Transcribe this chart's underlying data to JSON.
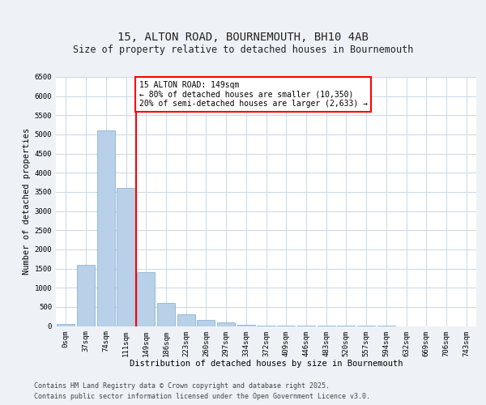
{
  "title_line1": "15, ALTON ROAD, BOURNEMOUTH, BH10 4AB",
  "title_line2": "Size of property relative to detached houses in Bournemouth",
  "xlabel": "Distribution of detached houses by size in Bournemouth",
  "ylabel": "Number of detached properties",
  "bar_color": "#b8d0e8",
  "bar_edge_color": "#7aaad0",
  "categories": [
    "0sqm",
    "37sqm",
    "74sqm",
    "111sqm",
    "149sqm",
    "186sqm",
    "223sqm",
    "260sqm",
    "297sqm",
    "334sqm",
    "372sqm",
    "409sqm",
    "446sqm",
    "483sqm",
    "520sqm",
    "557sqm",
    "594sqm",
    "632sqm",
    "669sqm",
    "706sqm",
    "743sqm"
  ],
  "values": [
    50,
    1600,
    5100,
    3600,
    1400,
    600,
    300,
    150,
    100,
    40,
    15,
    8,
    4,
    2,
    1,
    1,
    1,
    0,
    0,
    0,
    0
  ],
  "red_line_index": 4,
  "annotation_title": "15 ALTON ROAD: 149sqm",
  "annotation_line1": "← 80% of detached houses are smaller (10,350)",
  "annotation_line2": "20% of semi-detached houses are larger (2,633) →",
  "ylim": [
    0,
    6500
  ],
  "yticks": [
    0,
    500,
    1000,
    1500,
    2000,
    2500,
    3000,
    3500,
    4000,
    4500,
    5000,
    5500,
    6000,
    6500
  ],
  "footer_line1": "Contains HM Land Registry data © Crown copyright and database right 2025.",
  "footer_line2": "Contains public sector information licensed under the Open Government Licence v3.0.",
  "background_color": "#eef2f7",
  "plot_background": "#ffffff",
  "grid_color": "#c8d8e8",
  "title_fontsize": 10,
  "subtitle_fontsize": 8.5,
  "axis_label_fontsize": 7.5,
  "tick_fontsize": 6.5,
  "annotation_fontsize": 7,
  "footer_fontsize": 6
}
